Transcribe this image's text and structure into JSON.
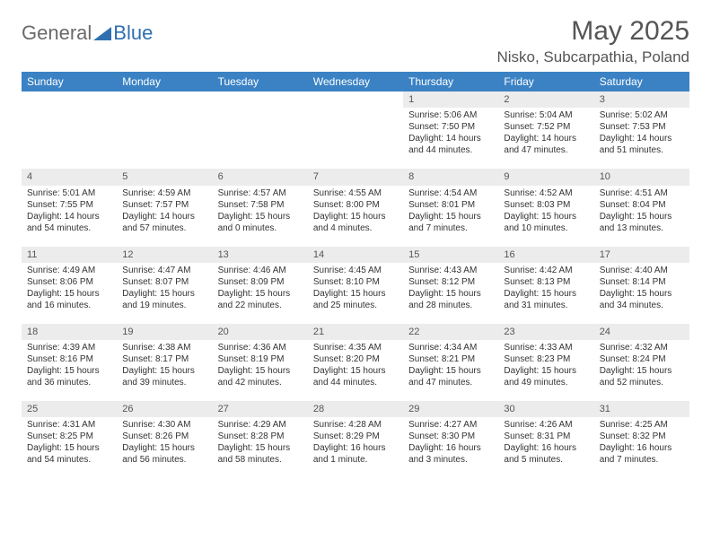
{
  "logo": {
    "word1": "General",
    "word2": "Blue",
    "icon_color": "#2f6fb0"
  },
  "title": {
    "month": "May 2025",
    "location": "Nisko, Subcarpathia, Poland"
  },
  "colors": {
    "header_bg": "#3b82c4",
    "header_text": "#ffffff",
    "daynum_bg": "#ececec",
    "text": "#333333"
  },
  "weekdays": [
    "Sunday",
    "Monday",
    "Tuesday",
    "Wednesday",
    "Thursday",
    "Friday",
    "Saturday"
  ],
  "weeks": [
    [
      null,
      null,
      null,
      null,
      {
        "n": "1",
        "sr": "Sunrise: 5:06 AM",
        "ss": "Sunset: 7:50 PM",
        "dl1": "Daylight: 14 hours",
        "dl2": "and 44 minutes."
      },
      {
        "n": "2",
        "sr": "Sunrise: 5:04 AM",
        "ss": "Sunset: 7:52 PM",
        "dl1": "Daylight: 14 hours",
        "dl2": "and 47 minutes."
      },
      {
        "n": "3",
        "sr": "Sunrise: 5:02 AM",
        "ss": "Sunset: 7:53 PM",
        "dl1": "Daylight: 14 hours",
        "dl2": "and 51 minutes."
      }
    ],
    [
      {
        "n": "4",
        "sr": "Sunrise: 5:01 AM",
        "ss": "Sunset: 7:55 PM",
        "dl1": "Daylight: 14 hours",
        "dl2": "and 54 minutes."
      },
      {
        "n": "5",
        "sr": "Sunrise: 4:59 AM",
        "ss": "Sunset: 7:57 PM",
        "dl1": "Daylight: 14 hours",
        "dl2": "and 57 minutes."
      },
      {
        "n": "6",
        "sr": "Sunrise: 4:57 AM",
        "ss": "Sunset: 7:58 PM",
        "dl1": "Daylight: 15 hours",
        "dl2": "and 0 minutes."
      },
      {
        "n": "7",
        "sr": "Sunrise: 4:55 AM",
        "ss": "Sunset: 8:00 PM",
        "dl1": "Daylight: 15 hours",
        "dl2": "and 4 minutes."
      },
      {
        "n": "8",
        "sr": "Sunrise: 4:54 AM",
        "ss": "Sunset: 8:01 PM",
        "dl1": "Daylight: 15 hours",
        "dl2": "and 7 minutes."
      },
      {
        "n": "9",
        "sr": "Sunrise: 4:52 AM",
        "ss": "Sunset: 8:03 PM",
        "dl1": "Daylight: 15 hours",
        "dl2": "and 10 minutes."
      },
      {
        "n": "10",
        "sr": "Sunrise: 4:51 AM",
        "ss": "Sunset: 8:04 PM",
        "dl1": "Daylight: 15 hours",
        "dl2": "and 13 minutes."
      }
    ],
    [
      {
        "n": "11",
        "sr": "Sunrise: 4:49 AM",
        "ss": "Sunset: 8:06 PM",
        "dl1": "Daylight: 15 hours",
        "dl2": "and 16 minutes."
      },
      {
        "n": "12",
        "sr": "Sunrise: 4:47 AM",
        "ss": "Sunset: 8:07 PM",
        "dl1": "Daylight: 15 hours",
        "dl2": "and 19 minutes."
      },
      {
        "n": "13",
        "sr": "Sunrise: 4:46 AM",
        "ss": "Sunset: 8:09 PM",
        "dl1": "Daylight: 15 hours",
        "dl2": "and 22 minutes."
      },
      {
        "n": "14",
        "sr": "Sunrise: 4:45 AM",
        "ss": "Sunset: 8:10 PM",
        "dl1": "Daylight: 15 hours",
        "dl2": "and 25 minutes."
      },
      {
        "n": "15",
        "sr": "Sunrise: 4:43 AM",
        "ss": "Sunset: 8:12 PM",
        "dl1": "Daylight: 15 hours",
        "dl2": "and 28 minutes."
      },
      {
        "n": "16",
        "sr": "Sunrise: 4:42 AM",
        "ss": "Sunset: 8:13 PM",
        "dl1": "Daylight: 15 hours",
        "dl2": "and 31 minutes."
      },
      {
        "n": "17",
        "sr": "Sunrise: 4:40 AM",
        "ss": "Sunset: 8:14 PM",
        "dl1": "Daylight: 15 hours",
        "dl2": "and 34 minutes."
      }
    ],
    [
      {
        "n": "18",
        "sr": "Sunrise: 4:39 AM",
        "ss": "Sunset: 8:16 PM",
        "dl1": "Daylight: 15 hours",
        "dl2": "and 36 minutes."
      },
      {
        "n": "19",
        "sr": "Sunrise: 4:38 AM",
        "ss": "Sunset: 8:17 PM",
        "dl1": "Daylight: 15 hours",
        "dl2": "and 39 minutes."
      },
      {
        "n": "20",
        "sr": "Sunrise: 4:36 AM",
        "ss": "Sunset: 8:19 PM",
        "dl1": "Daylight: 15 hours",
        "dl2": "and 42 minutes."
      },
      {
        "n": "21",
        "sr": "Sunrise: 4:35 AM",
        "ss": "Sunset: 8:20 PM",
        "dl1": "Daylight: 15 hours",
        "dl2": "and 44 minutes."
      },
      {
        "n": "22",
        "sr": "Sunrise: 4:34 AM",
        "ss": "Sunset: 8:21 PM",
        "dl1": "Daylight: 15 hours",
        "dl2": "and 47 minutes."
      },
      {
        "n": "23",
        "sr": "Sunrise: 4:33 AM",
        "ss": "Sunset: 8:23 PM",
        "dl1": "Daylight: 15 hours",
        "dl2": "and 49 minutes."
      },
      {
        "n": "24",
        "sr": "Sunrise: 4:32 AM",
        "ss": "Sunset: 8:24 PM",
        "dl1": "Daylight: 15 hours",
        "dl2": "and 52 minutes."
      }
    ],
    [
      {
        "n": "25",
        "sr": "Sunrise: 4:31 AM",
        "ss": "Sunset: 8:25 PM",
        "dl1": "Daylight: 15 hours",
        "dl2": "and 54 minutes."
      },
      {
        "n": "26",
        "sr": "Sunrise: 4:30 AM",
        "ss": "Sunset: 8:26 PM",
        "dl1": "Daylight: 15 hours",
        "dl2": "and 56 minutes."
      },
      {
        "n": "27",
        "sr": "Sunrise: 4:29 AM",
        "ss": "Sunset: 8:28 PM",
        "dl1": "Daylight: 15 hours",
        "dl2": "and 58 minutes."
      },
      {
        "n": "28",
        "sr": "Sunrise: 4:28 AM",
        "ss": "Sunset: 8:29 PM",
        "dl1": "Daylight: 16 hours",
        "dl2": "and 1 minute."
      },
      {
        "n": "29",
        "sr": "Sunrise: 4:27 AM",
        "ss": "Sunset: 8:30 PM",
        "dl1": "Daylight: 16 hours",
        "dl2": "and 3 minutes."
      },
      {
        "n": "30",
        "sr": "Sunrise: 4:26 AM",
        "ss": "Sunset: 8:31 PM",
        "dl1": "Daylight: 16 hours",
        "dl2": "and 5 minutes."
      },
      {
        "n": "31",
        "sr": "Sunrise: 4:25 AM",
        "ss": "Sunset: 8:32 PM",
        "dl1": "Daylight: 16 hours",
        "dl2": "and 7 minutes."
      }
    ]
  ]
}
